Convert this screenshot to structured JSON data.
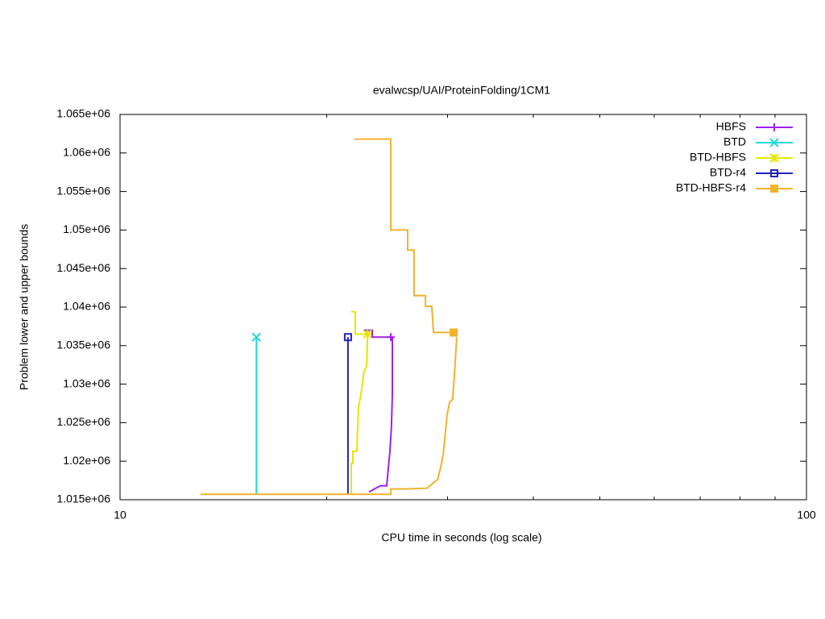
{
  "chart_data": {
    "type": "line",
    "title": "evalwcsp/UAI/ProteinFolding/1CM1",
    "x_label": "CPU time in seconds (log scale)",
    "y_label": "Problem lower and upper bounds",
    "log_x": true,
    "xlim": [
      10,
      100
    ],
    "xticks": [
      10,
      100
    ],
    "ylim": [
      1015000,
      1065000
    ],
    "yticks": [
      {
        "value": 1015000,
        "label": "1.015e+06"
      },
      {
        "value": 1020000,
        "label": "1.02e+06"
      },
      {
        "value": 1025000,
        "label": "1.025e+06"
      },
      {
        "value": 1030000,
        "label": "1.03e+06"
      },
      {
        "value": 1035000,
        "label": "1.035e+06"
      },
      {
        "value": 1040000,
        "label": "1.04e+06"
      },
      {
        "value": 1045000,
        "label": "1.045e+06"
      },
      {
        "value": 1050000,
        "label": "1.05e+06"
      },
      {
        "value": 1055000,
        "label": "1.055e+06"
      },
      {
        "value": 1060000,
        "label": "1.06e+06"
      },
      {
        "value": 1065000,
        "label": "1.065e+06"
      }
    ],
    "legend": "top-right",
    "series": [
      {
        "name": "HBFS",
        "color": "#a020f0",
        "marker": "plus",
        "x": [
          23.05,
          23.94,
          24.46,
          24.6,
          24.73,
          24.85,
          24.93,
          24.93,
          null,
          22.61,
          23.3,
          23.3,
          24.8
        ],
        "values": [
          1016000,
          1016800,
          1016800,
          1019200,
          1021300,
          1024400,
          1028600,
          1036100,
          null,
          1037000,
          1037000,
          1036100,
          1036100
        ]
      },
      {
        "name": "BTD",
        "color": "#1fd8d8",
        "marker": "cross",
        "x": [
          15.8,
          15.8
        ],
        "values": [
          1015700,
          1036100
        ]
      },
      {
        "name": "BTD-HBFS",
        "color": "#e6e600",
        "marker": "star",
        "x": [
          21.72,
          21.72,
          21.84,
          21.84,
          22.13,
          22.25,
          22.43,
          22.68,
          22.87,
          22.93,
          null,
          21.72,
          22.01,
          22.01,
          22.93
        ],
        "values": [
          1015700,
          1019700,
          1019700,
          1021300,
          1021300,
          1027000,
          1028600,
          1031700,
          1032300,
          1036100,
          null,
          1039400,
          1039400,
          1036500,
          1036500
        ]
      },
      {
        "name": "BTD-r4",
        "color": "#2222bb",
        "marker": "open-square",
        "x": [
          21.48,
          21.48
        ],
        "values": [
          1015700,
          1036100
        ]
      },
      {
        "name": "BTD-HBFS-r4",
        "color": "#f2b32a",
        "marker": "filled-square",
        "x": [
          13.1,
          24.8,
          24.8,
          26.17,
          28.01,
          28.54,
          29.01,
          29.32,
          29.56,
          29.96,
          30.2,
          30.53,
          30.78,
          30.94,
          null,
          21.96,
          24.8,
          24.8,
          26.24,
          26.24,
          26.81,
          26.81,
          27.86,
          27.86,
          28.46,
          28.61,
          30.62
        ],
        "values": [
          1015700,
          1015700,
          1016400,
          1016400,
          1016500,
          1017100,
          1017600,
          1019200,
          1020800,
          1026000,
          1027600,
          1028100,
          1032800,
          1036100,
          null,
          1061800,
          1061800,
          1050000,
          1050000,
          1047400,
          1047400,
          1041500,
          1041500,
          1040100,
          1040100,
          1036700,
          1036700
        ]
      }
    ]
  }
}
